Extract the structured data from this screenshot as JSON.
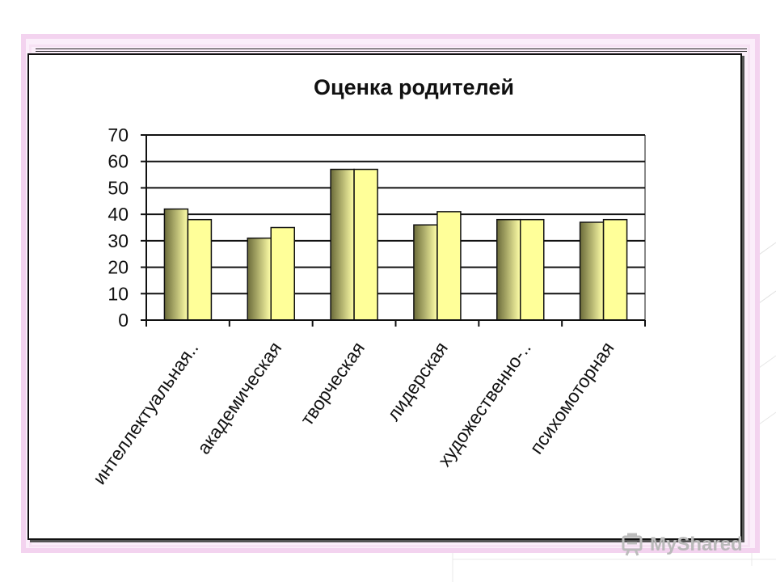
{
  "watermark": {
    "brand": "MyShared"
  },
  "chart_data": {
    "type": "bar",
    "title": "Оценка родителей",
    "xlabel": "",
    "ylabel": "",
    "ylim": [
      0,
      70
    ],
    "yticks": [
      0,
      10,
      20,
      30,
      40,
      50,
      60,
      70
    ],
    "grid": true,
    "legend": "none",
    "categories": [
      "интеллектуальная..",
      "академическая",
      "творческая",
      "лидерская",
      "художественно-..",
      "психомоторная"
    ],
    "series": [
      {
        "values": [
          42,
          31,
          57,
          36,
          38,
          37
        ],
        "color_dark": "#6b6b3a",
        "color_light": "#ffffa8"
      },
      {
        "values": [
          38,
          35,
          57,
          41,
          38,
          38
        ],
        "color": "#ffff99"
      }
    ]
  }
}
